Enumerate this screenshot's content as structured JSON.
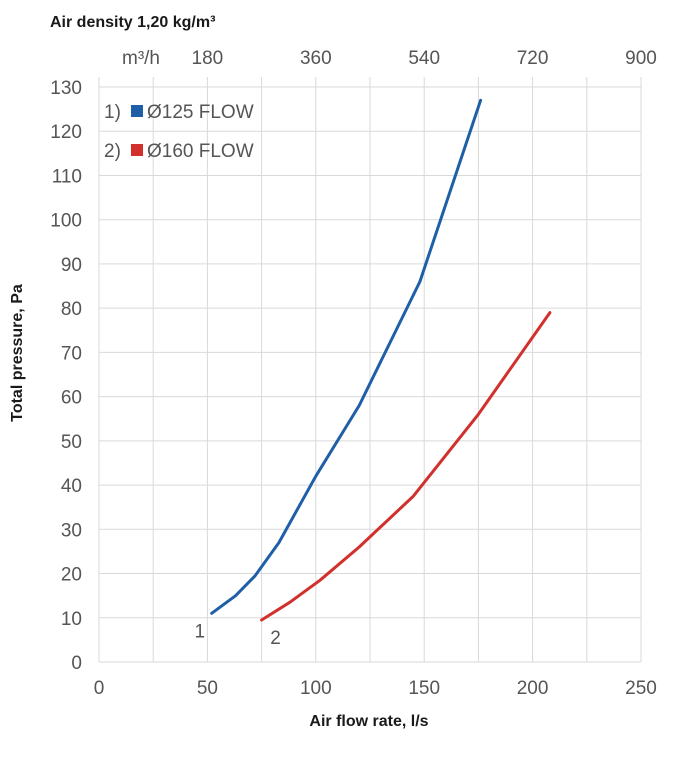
{
  "chart_data": {
    "type": "line",
    "top_title": "Air density 1,20 kg/m³",
    "xlabel": "Air flow rate, l/s",
    "ylabel": "Total pressure, Pa",
    "xlim": [
      0,
      250
    ],
    "ylim": [
      0,
      130
    ],
    "x_ticks": [
      "0",
      "50",
      "100",
      "150",
      "200",
      "250"
    ],
    "y_ticks": [
      "0",
      "10",
      "20",
      "30",
      "40",
      "50",
      "60",
      "70",
      "80",
      "90",
      "100",
      "110",
      "120",
      "130"
    ],
    "secondary_x": {
      "unit_label": "m³/h",
      "ticks": [
        "180",
        "360",
        "540",
        "720",
        "900"
      ]
    },
    "grid": true,
    "legend_position": "top-left",
    "series": [
      {
        "name": "Ø125 FLOW",
        "legend_prefix": "1)",
        "curve_label": "1",
        "color": "#1f5fa8",
        "x": [
          52,
          63,
          72,
          83,
          100,
          120,
          148,
          176
        ],
        "y": [
          11,
          15,
          19.5,
          27,
          42,
          58,
          86,
          127
        ]
      },
      {
        "name": "Ø160 FLOW",
        "legend_prefix": "2)",
        "curve_label": "2",
        "color": "#d2302c",
        "x": [
          75,
          88,
          102,
          120,
          145,
          175,
          208
        ],
        "y": [
          9.5,
          13.5,
          18.5,
          26,
          37.5,
          56,
          79
        ]
      }
    ]
  }
}
